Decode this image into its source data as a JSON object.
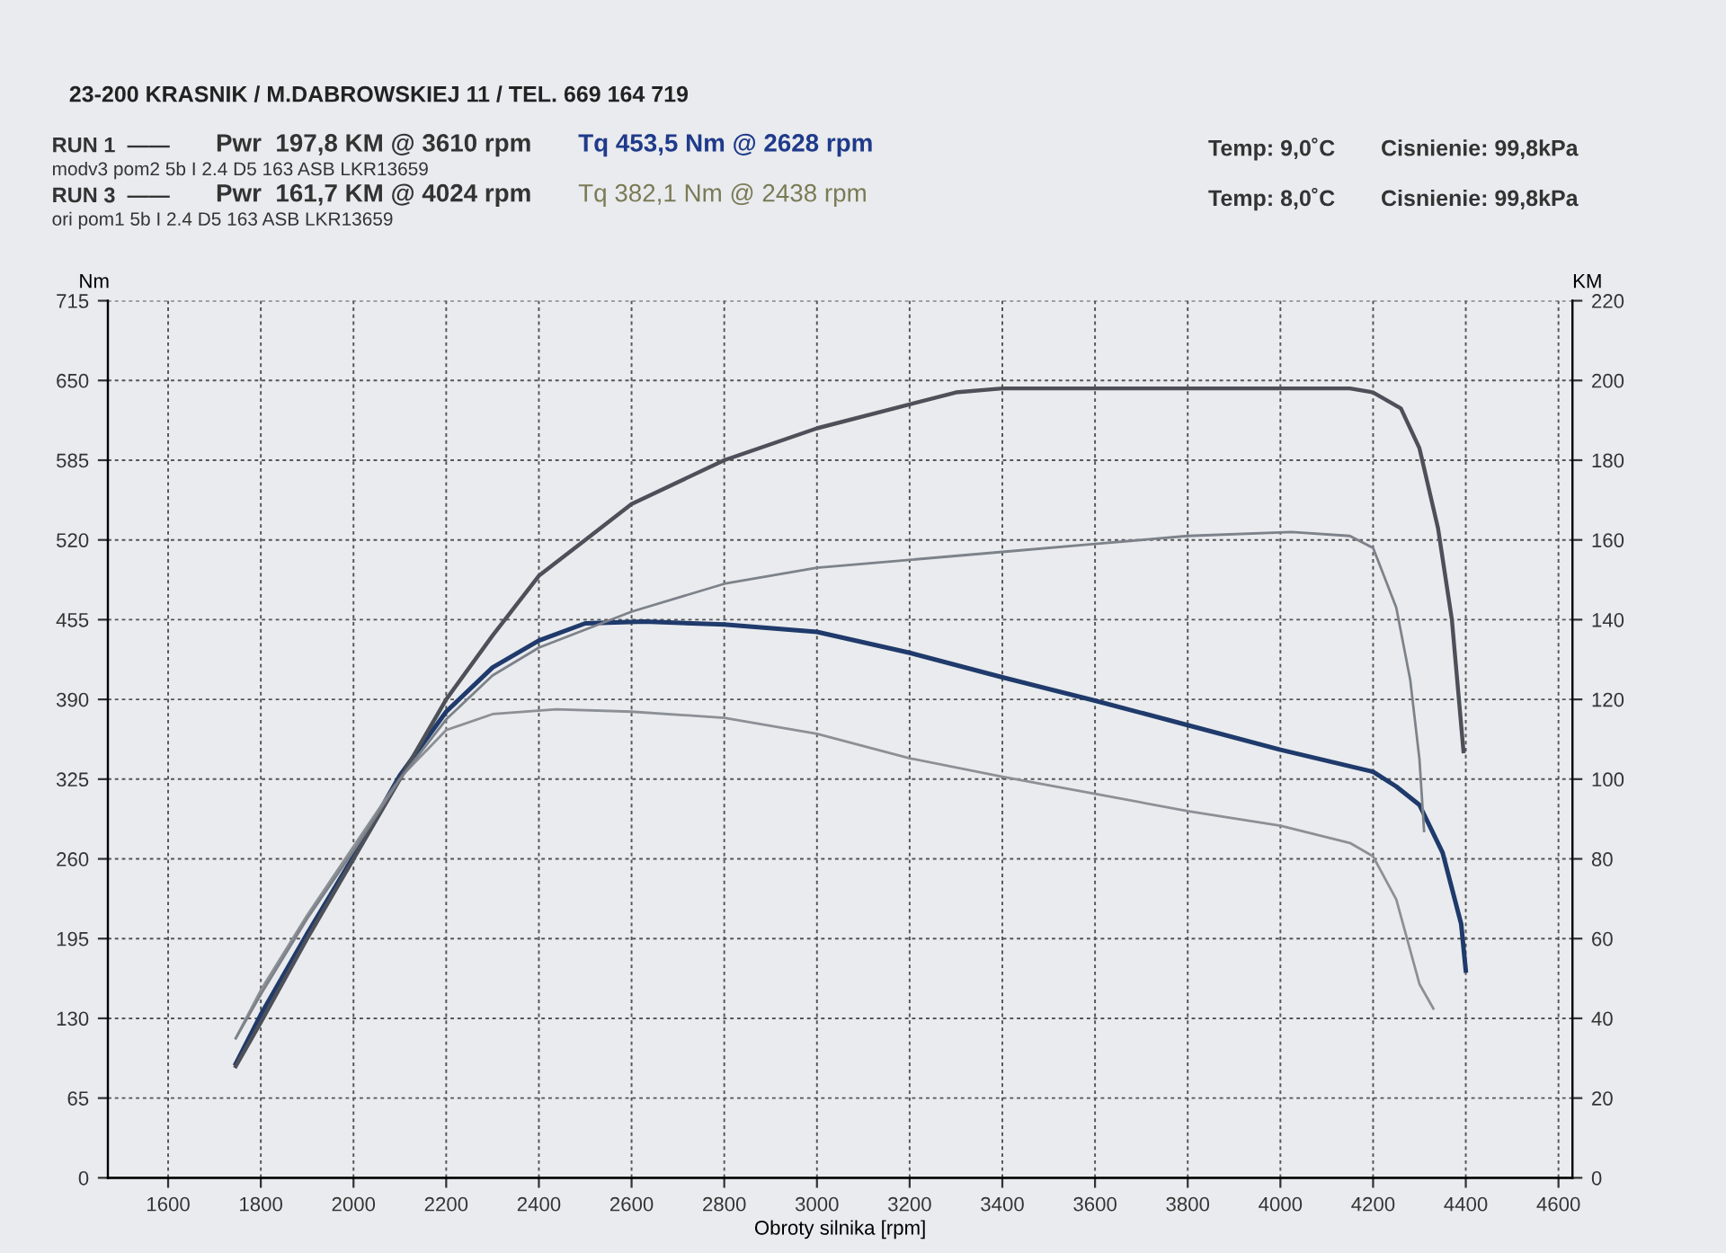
{
  "chart_data": {
    "type": "line",
    "xlabel": "Obroty silnika [rpm]",
    "ylabel": "Nm",
    "y2label": "KM",
    "xlim": [
      1470,
      4630
    ],
    "xticks": [
      1600,
      1800,
      2000,
      2200,
      2400,
      2600,
      2800,
      3000,
      3200,
      3400,
      3600,
      3800,
      4000,
      4200,
      4400,
      4600
    ],
    "ylim": [
      0,
      715
    ],
    "yticks": [
      0,
      65,
      130,
      195,
      260,
      325,
      390,
      455,
      520,
      585,
      650,
      715
    ],
    "y2lim": [
      0,
      220
    ],
    "y2ticks": [
      0,
      20,
      40,
      60,
      80,
      100,
      120,
      140,
      160,
      180,
      200,
      220
    ],
    "grid": true,
    "line_style": "solid",
    "annotations": [
      "23-200 KRASNIK / M.DABROWSKIEJ 11 / TEL. 669 164 719",
      "RUN 1  ——",
      "Pwr  197,8 KM @ 3610 rpm",
      "Tq 453,5 Nm @ 2628 rpm",
      "modv3 pom2 5b I 2.4 D5 163 ASB LKR13659",
      "RUN 3  ——",
      "Pwr  161,7 KM @ 4024 rpm",
      "Tq 382,1 Nm @ 2438 rpm",
      "ori pom1 5b I 2.4 D5 163 ASB LKR13659",
      "Temp: 9,0˚C",
      "Cisnienie: 99,8kPa",
      "Temp: 8,0˚C",
      "Cisnienie: 99,8kPa"
    ],
    "series": [
      {
        "color": "#1f3a6b",
        "x": [
          1746,
          1800,
          1900,
          2000,
          2100,
          2200,
          2300,
          2400,
          2500,
          2628,
          2800,
          3000,
          3200,
          3400,
          3600,
          3800,
          4000,
          4200,
          4250,
          4300,
          4350,
          4390,
          4400
        ],
        "values": [
          93,
          133,
          199,
          262,
          328,
          380,
          416,
          438,
          452,
          453.5,
          451,
          445,
          428,
          408,
          389,
          369,
          349,
          331,
          319,
          304,
          265,
          207,
          169
        ]
      },
      {
        "color": "#4d5058",
        "axis": "y2",
        "x": [
          1746,
          1800,
          1900,
          2000,
          2100,
          2200,
          2300,
          2400,
          2500,
          2600,
          2800,
          3000,
          3200,
          3300,
          3400,
          3610,
          3800,
          4000,
          4150,
          4200,
          4260,
          4300,
          4340,
          4370,
          4395
        ],
        "values": [
          28,
          39,
          60,
          80,
          100,
          120,
          136,
          151,
          160,
          169,
          180,
          188,
          194,
          197,
          198,
          198,
          198,
          198,
          198,
          197,
          193,
          183,
          163,
          140,
          107
        ]
      },
      {
        "color": "#8c9096",
        "x": [
          1746,
          1800,
          1900,
          2000,
          2100,
          2200,
          2300,
          2438,
          2600,
          2800,
          3000,
          3200,
          3400,
          3600,
          3800,
          4000,
          4150,
          4200,
          4250,
          4300,
          4330
        ],
        "values": [
          114,
          153,
          214,
          270,
          326,
          365,
          378,
          382,
          380,
          375,
          362,
          342,
          327,
          313,
          299,
          287,
          273,
          262,
          227,
          158,
          138
        ]
      },
      {
        "color": "#7d828a",
        "axis": "y2",
        "x": [
          1746,
          1800,
          1900,
          2000,
          2100,
          2200,
          2300,
          2400,
          2600,
          2800,
          3000,
          3200,
          3400,
          3600,
          3800,
          4024,
          4150,
          4200,
          4250,
          4280,
          4300,
          4310
        ],
        "values": [
          35,
          46,
          65,
          82,
          100,
          115,
          126,
          133,
          142,
          149,
          153,
          155,
          157,
          159,
          161,
          162,
          161,
          158,
          143,
          125,
          105,
          87
        ]
      }
    ]
  }
}
